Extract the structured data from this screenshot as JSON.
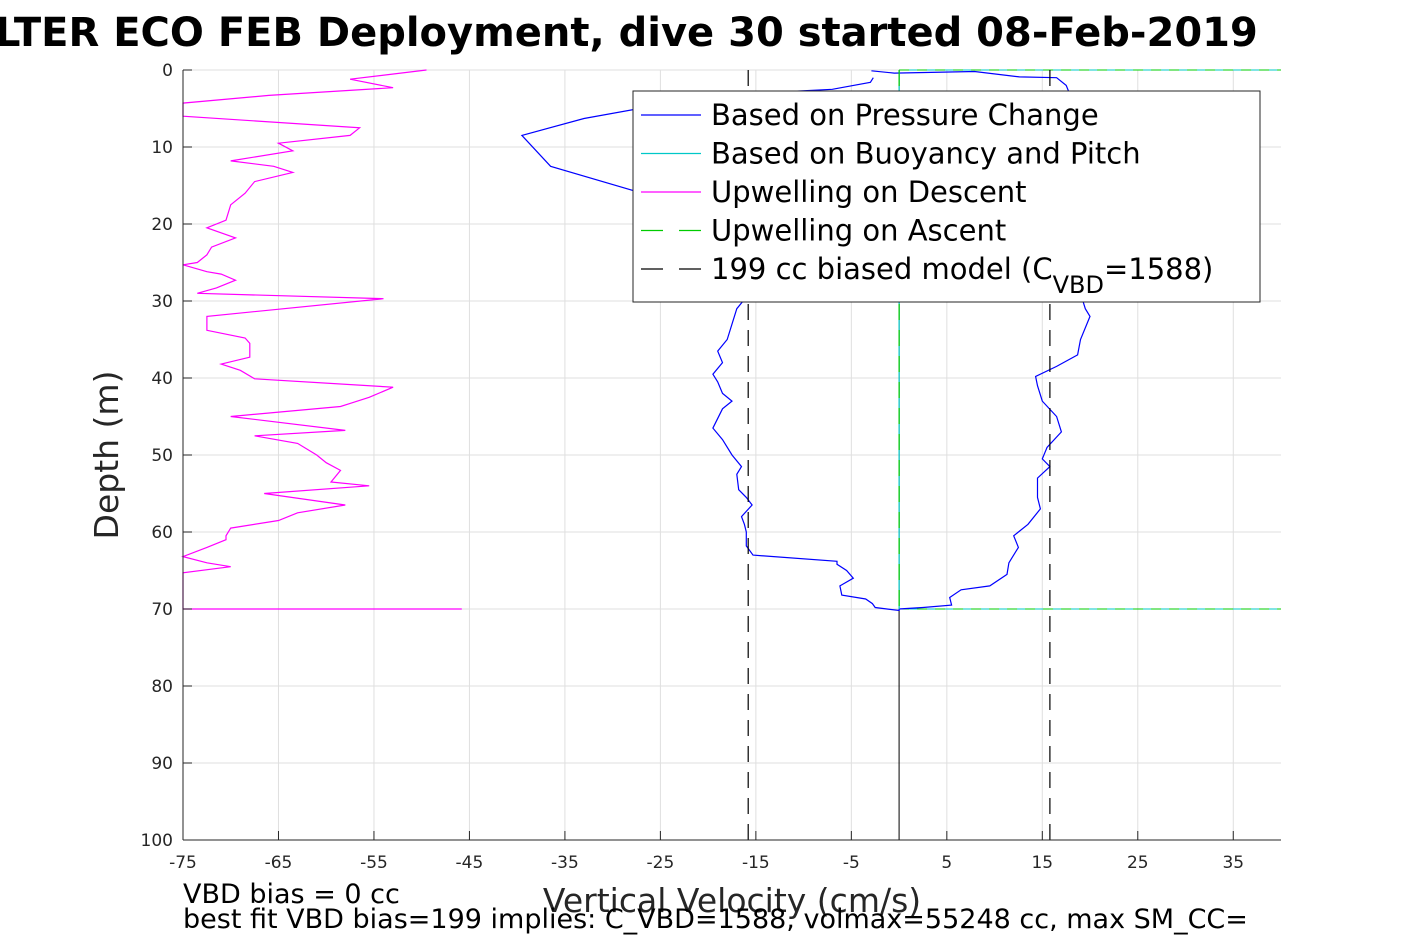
{
  "chart_data": {
    "type": "line",
    "title": "LTER ECO FEB Deployment, dive 30 started 08-Feb-2019",
    "xlabel": "Vertical Velocity (cm/s)",
    "ylabel": "Depth (m)",
    "xlim": [
      -75,
      40
    ],
    "ylim": [
      0,
      100
    ],
    "y_reversed": true,
    "grid": true,
    "legend_position": "top-right",
    "xticks": [
      -75,
      -65,
      -55,
      -45,
      -35,
      -25,
      -15,
      -5,
      5,
      15,
      25,
      35
    ],
    "yticks": [
      0,
      10,
      20,
      30,
      40,
      50,
      60,
      70,
      80,
      90,
      100
    ],
    "series": [
      {
        "name": "Based on Pressure Change",
        "color": "#0000ff",
        "style": "solid",
        "points": [
          [
            -2.9,
            0.1
          ],
          [
            -0.5,
            0.4
          ],
          [
            7.9,
            0.2
          ],
          [
            12.6,
            0.9
          ],
          [
            16.5,
            1.0
          ],
          [
            17.5,
            2.0
          ],
          [
            18.0,
            3.5
          ],
          [
            18.0,
            5.0
          ],
          [
            17.5,
            7.0
          ],
          [
            17.2,
            9.0
          ],
          [
            17.5,
            11.0
          ],
          [
            17.8,
            13.0
          ],
          [
            18.0,
            15.0
          ],
          [
            17.8,
            17.0
          ],
          [
            18.0,
            19.0
          ],
          [
            18.5,
            21.0
          ],
          [
            19.0,
            23.0
          ],
          [
            19.3,
            25.0
          ],
          [
            19.2,
            27.0
          ],
          [
            19.0,
            29.0
          ],
          [
            19.5,
            31.0
          ],
          [
            20.0,
            32.0
          ],
          [
            19.0,
            35.0
          ],
          [
            18.7,
            37.0
          ],
          [
            16.5,
            38.5
          ],
          [
            14.3,
            39.8
          ],
          [
            14.5,
            41.0
          ],
          [
            15.0,
            43.0
          ],
          [
            16.5,
            45.0
          ],
          [
            17.0,
            47.0
          ],
          [
            15.5,
            49.0
          ],
          [
            15.0,
            50.5
          ],
          [
            15.8,
            51.5
          ],
          [
            14.5,
            53.0
          ],
          [
            14.5,
            55.5
          ],
          [
            14.8,
            57.0
          ],
          [
            13.5,
            59.0
          ],
          [
            12.0,
            60.5
          ],
          [
            12.5,
            62.0
          ],
          [
            11.5,
            64.0
          ],
          [
            11.3,
            65.5
          ],
          [
            9.5,
            67.0
          ],
          [
            6.5,
            67.5
          ],
          [
            5.3,
            68.5
          ],
          [
            5.5,
            69.5
          ],
          [
            2.5,
            69.8
          ],
          [
            0.0,
            70.0
          ],
          [
            0.0,
            70.2
          ],
          [
            -2.5,
            69.8
          ],
          [
            -2.8,
            69.3
          ],
          [
            -3.5,
            68.7
          ],
          [
            -6.0,
            68.2
          ],
          [
            -6.2,
            67.0
          ],
          [
            -4.8,
            66.0
          ],
          [
            -5.5,
            65.0
          ],
          [
            -6.5,
            64.2
          ],
          [
            -6.5,
            63.8
          ],
          [
            -15.3,
            63.0
          ],
          [
            -16.0,
            61.8
          ],
          [
            -16.0,
            60.0
          ],
          [
            -16.2,
            59.0
          ],
          [
            -16.5,
            58.0
          ],
          [
            -15.4,
            56.5
          ],
          [
            -16.0,
            55.5
          ],
          [
            -16.8,
            54.5
          ],
          [
            -17.0,
            52.5
          ],
          [
            -16.5,
            51.5
          ],
          [
            -17.5,
            50.0
          ],
          [
            -18.5,
            48.0
          ],
          [
            -19.5,
            46.5
          ],
          [
            -18.5,
            44.0
          ],
          [
            -17.5,
            43.0
          ],
          [
            -18.5,
            42.0
          ],
          [
            -19.0,
            40.5
          ],
          [
            -19.5,
            39.5
          ],
          [
            -18.5,
            38.0
          ],
          [
            -19.0,
            36.5
          ],
          [
            -18.0,
            35.0
          ],
          [
            -17.5,
            33.0
          ],
          [
            -17.0,
            31.0
          ],
          [
            -16.0,
            29.5
          ],
          [
            -16.5,
            27.0
          ],
          [
            -17.5,
            24.0
          ],
          [
            -19.0,
            21.0
          ],
          [
            -21.5,
            18.5
          ],
          [
            -25.5,
            16.5
          ],
          [
            -36.5,
            12.5
          ],
          [
            -39.5,
            8.5
          ],
          [
            -33.0,
            6.3
          ],
          [
            -25.0,
            4.5
          ],
          [
            -18.0,
            3.2
          ],
          [
            -7.0,
            2.5
          ],
          [
            -3.0,
            1.6
          ],
          [
            -2.7,
            1.0
          ]
        ]
      },
      {
        "name": "Based on Buoyancy and Pitch",
        "color": "#00c8c8",
        "style": "solid",
        "points": [
          [
            0.0,
            0.0
          ],
          [
            0.0,
            70.0
          ]
        ]
      },
      {
        "name": "Upwelling on Descent",
        "color": "#ff00ff",
        "style": "solid",
        "points": [
          [
            -49.5,
            0.0
          ],
          [
            -57.5,
            1.2
          ],
          [
            -53.0,
            2.3
          ],
          [
            -66.0,
            3.3
          ],
          [
            -75.0,
            4.3
          ],
          [
            -75.0,
            6.0
          ],
          [
            -56.5,
            7.5
          ],
          [
            -57.5,
            8.5
          ],
          [
            -65.0,
            9.5
          ],
          [
            -63.5,
            10.5
          ],
          [
            -70.0,
            11.8
          ],
          [
            -65.5,
            12.5
          ],
          [
            -63.5,
            13.3
          ],
          [
            -67.5,
            14.5
          ],
          [
            -68.5,
            16.0
          ],
          [
            -70.0,
            17.5
          ],
          [
            -70.5,
            19.5
          ],
          [
            -72.5,
            20.5
          ],
          [
            -69.5,
            21.8
          ],
          [
            -72.0,
            23.0
          ],
          [
            -72.5,
            24.0
          ],
          [
            -73.5,
            25.0
          ],
          [
            -75.0,
            25.3
          ],
          [
            -72.5,
            26.2
          ],
          [
            -71.0,
            26.5
          ],
          [
            -69.5,
            27.3
          ],
          [
            -71.5,
            28.3
          ],
          [
            -73.5,
            29.0
          ],
          [
            -54.0,
            29.7
          ],
          [
            -72.5,
            32.0
          ],
          [
            -72.5,
            33.8
          ],
          [
            -68.5,
            34.8
          ],
          [
            -68.0,
            35.5
          ],
          [
            -68.0,
            37.3
          ],
          [
            -71.0,
            38.2
          ],
          [
            -69.0,
            39.0
          ],
          [
            -67.5,
            40.1
          ],
          [
            -53.0,
            41.2
          ],
          [
            -55.5,
            42.5
          ],
          [
            -57.5,
            43.3
          ],
          [
            -58.5,
            43.7
          ],
          [
            -70.0,
            45.0
          ],
          [
            -58.0,
            46.8
          ],
          [
            -67.5,
            47.5
          ],
          [
            -63.0,
            48.5
          ],
          [
            -61.0,
            50.0
          ],
          [
            -60.0,
            51.0
          ],
          [
            -58.5,
            52.0
          ],
          [
            -59.5,
            53.5
          ],
          [
            -55.5,
            54.0
          ],
          [
            -66.5,
            55.0
          ],
          [
            -58.0,
            56.5
          ],
          [
            -63.0,
            57.5
          ],
          [
            -65.0,
            58.5
          ],
          [
            -70.0,
            59.5
          ],
          [
            -70.5,
            60.5
          ],
          [
            -70.5,
            61.0
          ],
          [
            -72.5,
            62.0
          ],
          [
            -75.0,
            63.2
          ],
          [
            -72.5,
            64.0
          ],
          [
            -70.0,
            64.5
          ],
          [
            -75.0,
            65.3
          ],
          [
            -75.0,
            70.0
          ],
          [
            -45.8,
            70.0
          ]
        ]
      },
      {
        "name": "Upwelling on Ascent",
        "color": "#00cc00",
        "style": "dashed",
        "points": [
          [
            0.0,
            0.0
          ],
          [
            0.0,
            70.0
          ]
        ]
      },
      {
        "name": "199 cc biased model (C_VBD=1588)",
        "color": "#000000",
        "style": "dashed",
        "points_left": [
          [
            -15.8,
            0.0
          ],
          [
            -15.8,
            100.0
          ]
        ],
        "points_right": [
          [
            15.8,
            0.0
          ],
          [
            15.8,
            100.0
          ]
        ]
      }
    ],
    "reference_lines": [
      {
        "color": "#00c8c8",
        "axis": "y",
        "value": 0.0,
        "from_x": 0.0,
        "to_x": 40.0
      },
      {
        "color": "#00cc00",
        "axis": "y",
        "value": 0.0,
        "from_x": 0.0,
        "to_x": 40.0,
        "style": "dashed"
      },
      {
        "color": "#00c8c8",
        "axis": "y",
        "value": 70.0,
        "from_x": 0.0,
        "to_x": 40.0
      },
      {
        "color": "#00cc00",
        "axis": "y",
        "value": 70.0,
        "from_x": 0.0,
        "to_x": 40.0,
        "style": "dashed"
      },
      {
        "color": "#000000",
        "axis": "x",
        "value": 0.0,
        "from_y": 0.0,
        "to_y": 100.0
      }
    ],
    "legend": [
      {
        "label": "Based on Pressure Change",
        "color": "#0000ff",
        "style": "solid"
      },
      {
        "label": "Based on Buoyancy and Pitch",
        "color": "#00c8c8",
        "style": "solid"
      },
      {
        "label": "Upwelling on Descent",
        "color": "#ff00ff",
        "style": "solid"
      },
      {
        "label": "Upwelling on Ascent",
        "color": "#00cc00",
        "style": "dashed"
      },
      {
        "label_main": "199 cc biased model (C",
        "label_sub": "VBD",
        "label_tail": "=1588)",
        "color": "#000000",
        "style": "dashed"
      }
    ],
    "footer": {
      "line1": "VBD bias = 0 cc",
      "line2": "best fit VBD bias=199 implies: C_VBD=1588, volmax=55248 cc, max SM_CC="
    }
  }
}
